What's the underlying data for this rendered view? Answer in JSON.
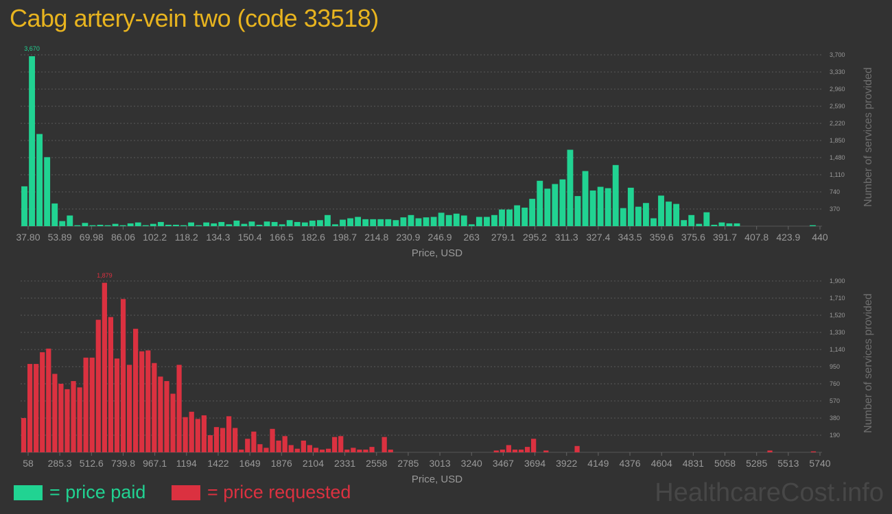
{
  "title": "Cabg artery-vein two (code 33518)",
  "colors": {
    "paid": "#21d392",
    "requested": "#db3140",
    "title": "#e8b41f",
    "grid": "#5a5a5a",
    "text": "#9a9a9a"
  },
  "legend": {
    "paid": "= price paid",
    "requested": "= price requested"
  },
  "watermark": "HealthcareCost.info",
  "chart_data": [
    {
      "type": "bar",
      "series_name": "price paid",
      "xlabel": "Price, USD",
      "ylabel": "Number of services provided",
      "x_tick_labels": [
        "37.80",
        "53.89",
        "69.98",
        "86.06",
        "102.2",
        "118.2",
        "134.3",
        "150.4",
        "166.5",
        "182.6",
        "198.7",
        "214.8",
        "230.9",
        "246.9",
        "263",
        "279.1",
        "295.2",
        "311.3",
        "327.4",
        "343.5",
        "359.6",
        "375.6",
        "391.7",
        "407.8",
        "423.9",
        "440"
      ],
      "y_ticks": [
        "370",
        "740",
        "1,110",
        "1,480",
        "1,850",
        "2,220",
        "2,590",
        "2,960",
        "3,330",
        "3,700"
      ],
      "ylim": [
        0,
        3700
      ],
      "peak_label": "3,670",
      "peak_value": 3670,
      "values": [
        860,
        3670,
        1990,
        1490,
        490,
        110,
        230,
        20,
        70,
        20,
        30,
        20,
        50,
        20,
        60,
        80,
        20,
        50,
        90,
        30,
        30,
        20,
        80,
        20,
        80,
        60,
        90,
        40,
        120,
        50,
        100,
        30,
        100,
        90,
        40,
        130,
        90,
        80,
        120,
        130,
        240,
        40,
        140,
        170,
        200,
        150,
        150,
        150,
        150,
        130,
        190,
        240,
        170,
        190,
        200,
        290,
        240,
        270,
        230,
        40,
        200,
        200,
        240,
        360,
        360,
        450,
        400,
        590,
        980,
        810,
        910,
        1010,
        1650,
        650,
        1190,
        770,
        850,
        820,
        1320,
        390,
        830,
        420,
        500,
        170,
        660,
        530,
        480,
        130,
        240,
        50,
        300,
        30,
        80,
        60,
        60,
        0,
        0,
        0,
        0,
        0,
        0,
        0,
        0,
        0,
        20
      ]
    },
    {
      "type": "bar",
      "series_name": "price requested",
      "xlabel": "Price, USD",
      "ylabel": "Number of services provided",
      "x_tick_labels": [
        "58",
        "285.3",
        "512.6",
        "739.8",
        "967.1",
        "1194",
        "1422",
        "1649",
        "1876",
        "2104",
        "2331",
        "2558",
        "2785",
        "3013",
        "3240",
        "3467",
        "3694",
        "3922",
        "4149",
        "4376",
        "4604",
        "4831",
        "5058",
        "5285",
        "5513",
        "5740"
      ],
      "y_ticks": [
        "190",
        "380",
        "570",
        "760",
        "950",
        "1,140",
        "1,330",
        "1,520",
        "1,710",
        "1,900"
      ],
      "ylim": [
        0,
        1900
      ],
      "peak_label": "1,879",
      "peak_value": 1879,
      "values": [
        380,
        980,
        980,
        1110,
        1150,
        870,
        760,
        700,
        790,
        720,
        1050,
        1050,
        1470,
        1880,
        1500,
        1040,
        1700,
        970,
        1370,
        1120,
        1130,
        990,
        840,
        790,
        650,
        970,
        390,
        450,
        370,
        410,
        190,
        280,
        270,
        400,
        270,
        30,
        150,
        230,
        90,
        50,
        260,
        130,
        180,
        80,
        40,
        130,
        80,
        50,
        30,
        40,
        170,
        180,
        30,
        50,
        30,
        30,
        60,
        0,
        170,
        30,
        0,
        0,
        0,
        0,
        0,
        0,
        0,
        0,
        0,
        0,
        0,
        0,
        0,
        0,
        0,
        0,
        20,
        30,
        80,
        30,
        30,
        60,
        150,
        0,
        20,
        0,
        0,
        0,
        0,
        70,
        0,
        0,
        0,
        0,
        0,
        0,
        0,
        0,
        0,
        0,
        0,
        0,
        0,
        0,
        0,
        0,
        0,
        0,
        0,
        0,
        0,
        0,
        0,
        0,
        0,
        0,
        0,
        0,
        0,
        0,
        20,
        0,
        0,
        0,
        0,
        0,
        0,
        10
      ]
    }
  ]
}
